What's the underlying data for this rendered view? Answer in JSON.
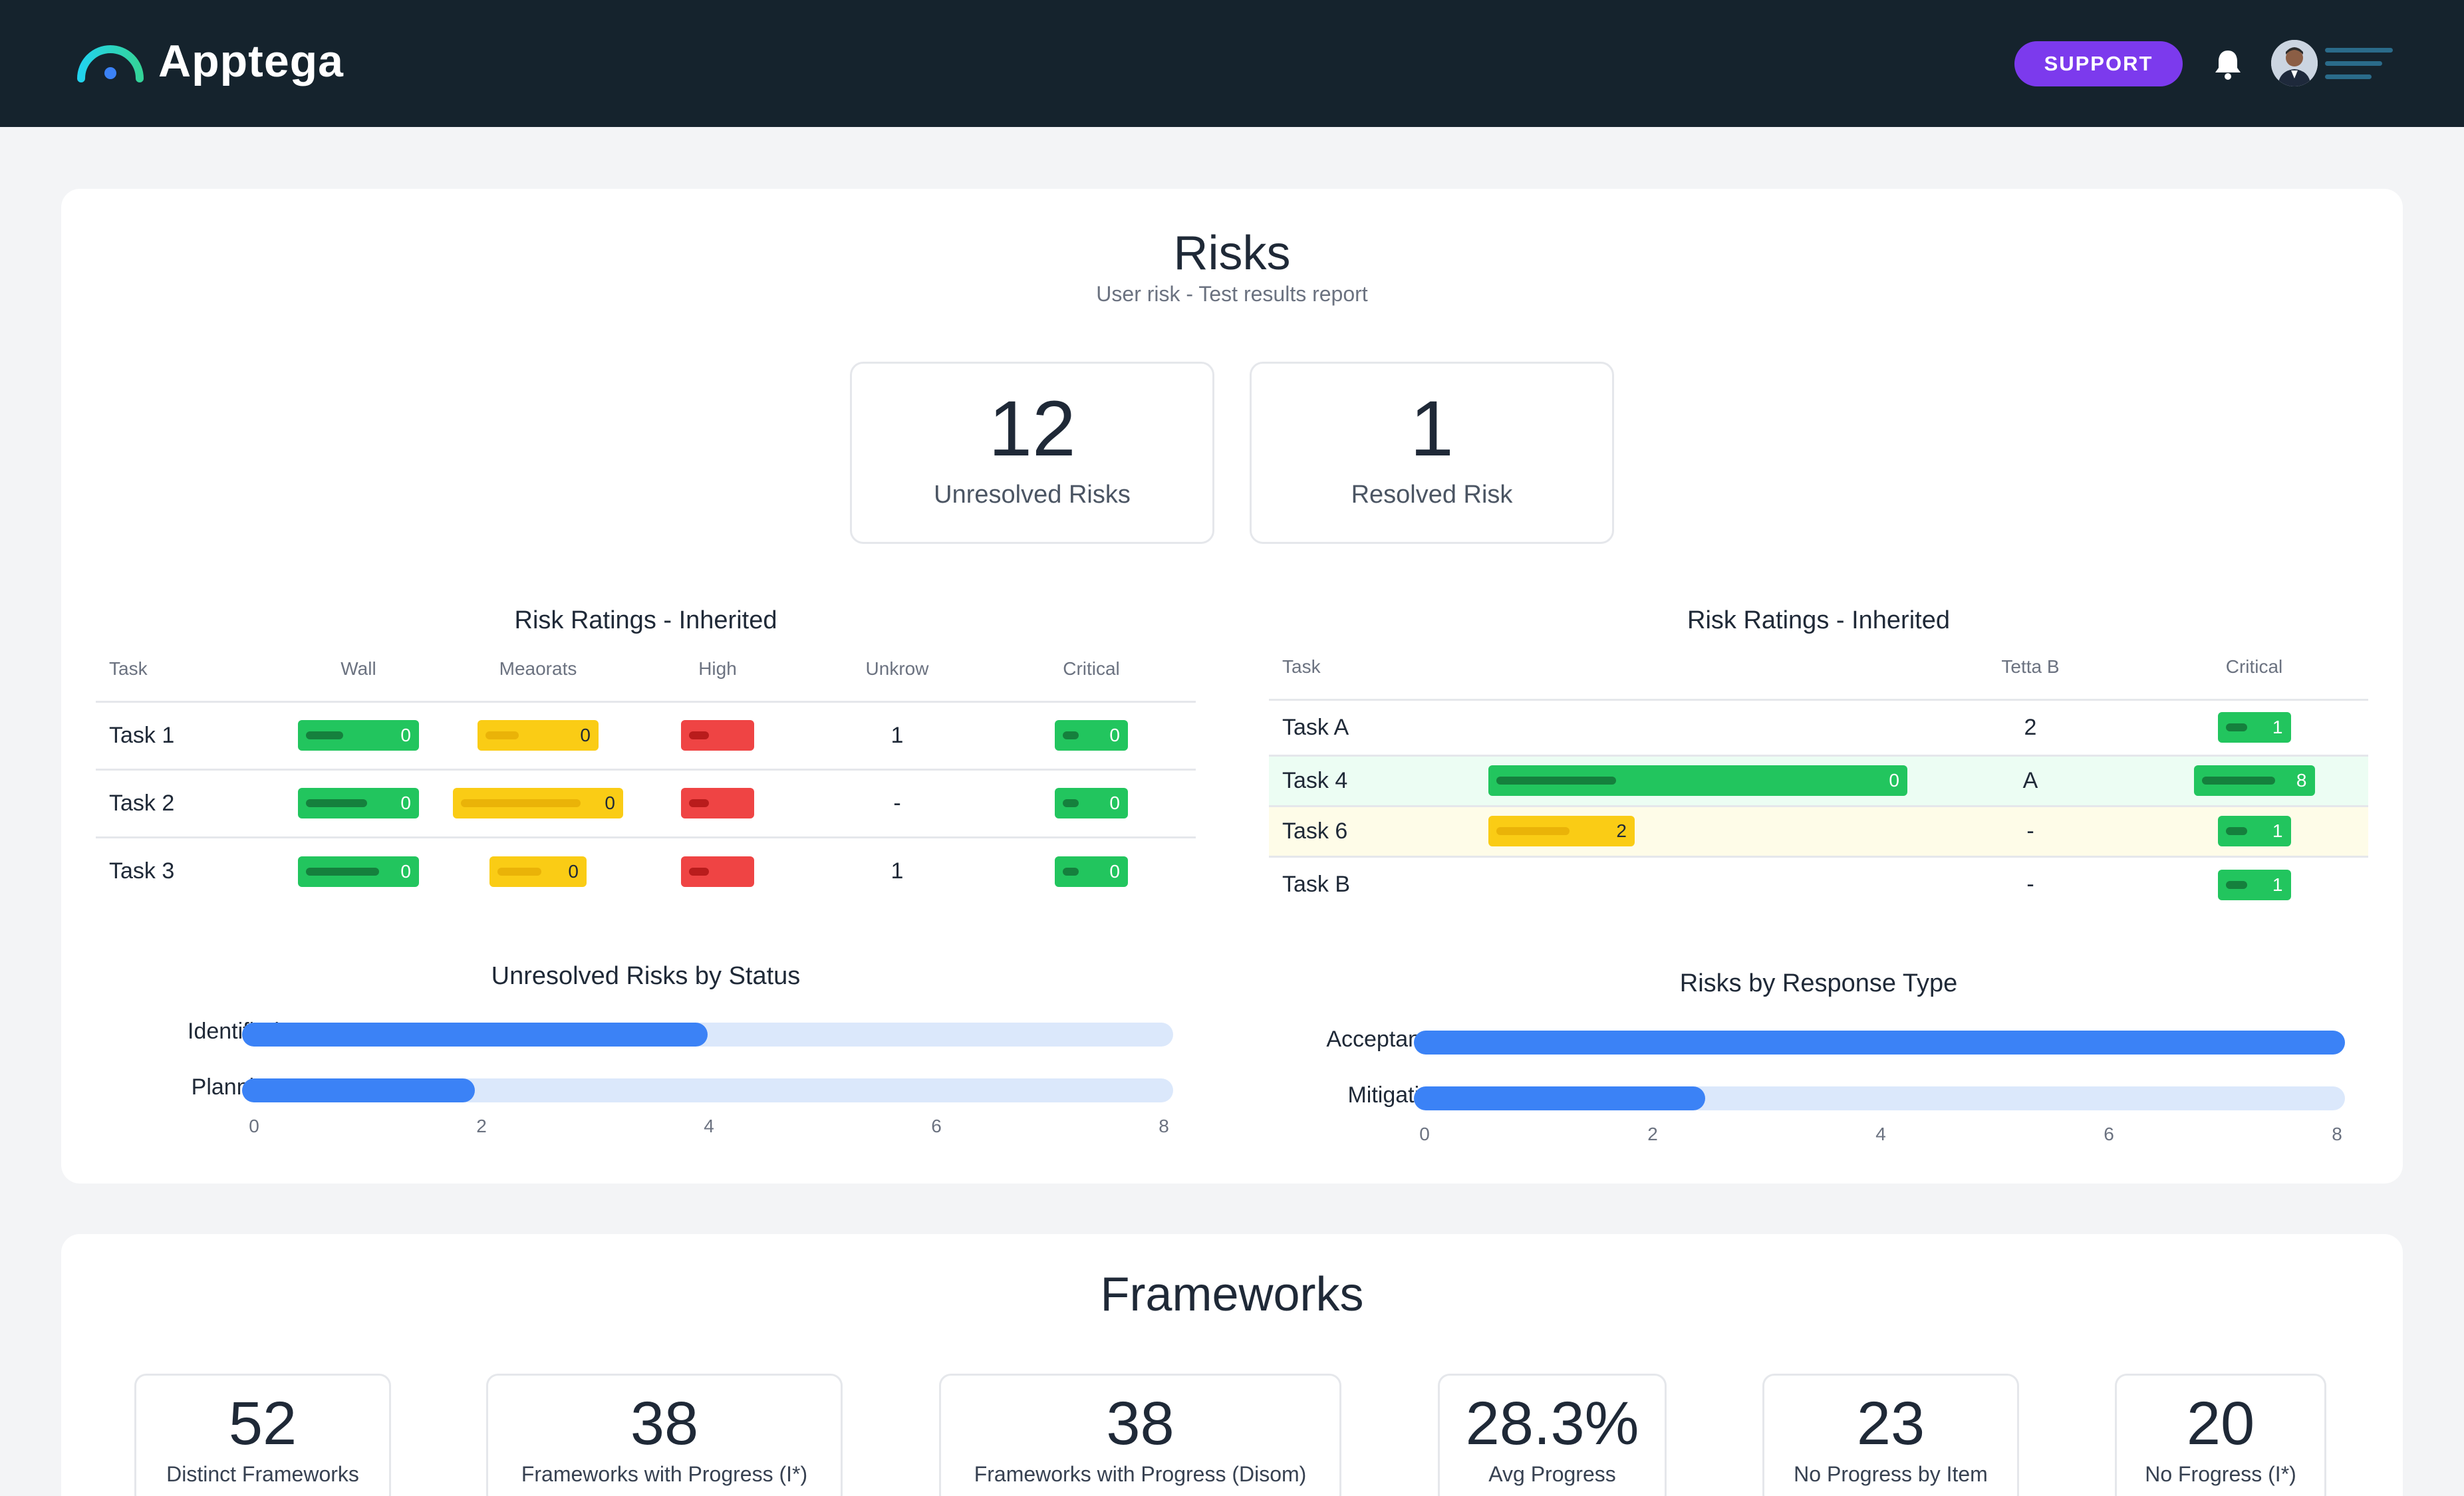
{
  "header": {
    "brand": "Apptega",
    "support_label": "SUPPORT",
    "icons": [
      "apptega-logo-icon",
      "bell-icon",
      "avatar",
      "menu-icon"
    ]
  },
  "risks": {
    "title": "Risks",
    "subtitle": "User risk - Test results report",
    "stats": [
      {
        "value": "12",
        "label": "Unresolved Risks"
      },
      {
        "value": "1",
        "label": "Resolved Risk"
      }
    ],
    "left_table": {
      "title": "Risk Ratings - Inherited",
      "columns": [
        "Task",
        "Wall",
        "Meaorats",
        "High",
        "Unkrow",
        "Critical"
      ],
      "rows": [
        {
          "task": "Task 1",
          "wall": "0",
          "meaorats": "0",
          "high": "",
          "unkrow": "1",
          "critical": "0"
        },
        {
          "task": "Task 2",
          "wall": "0",
          "meaorats": "0",
          "high": "",
          "unkrow": "-",
          "critical": "0"
        },
        {
          "task": "Task 3",
          "wall": "0",
          "meaorats": "0",
          "high": "",
          "unkrow": "1",
          "critical": "0"
        }
      ]
    },
    "right_table": {
      "title": "Risk Ratings - Inherited",
      "columns": [
        "Task",
        "",
        "Tetta B",
        "Critical"
      ],
      "rows": [
        {
          "task": "Task A",
          "bar": "",
          "tetta": "2",
          "critical": "1"
        },
        {
          "task": "Task 4",
          "bar": "0",
          "tetta": "A",
          "critical": "8"
        },
        {
          "task": "Task 6",
          "bar": "2",
          "tetta": "-",
          "critical": "1"
        },
        {
          "task": "Task B",
          "bar": "",
          "tetta": "-",
          "critical": "1"
        }
      ]
    },
    "status_chart": {
      "title": "Unresolved Risks by Status",
      "ticks": [
        "0",
        "2",
        "4",
        "6",
        "8"
      ],
      "max": 8,
      "bars": [
        {
          "label": "Identified",
          "value": 4
        },
        {
          "label": "Planning",
          "value": 2
        }
      ]
    },
    "response_chart": {
      "title": "Risks by Response Type",
      "ticks": [
        "0",
        "2",
        "4",
        "6",
        "8"
      ],
      "max": 8,
      "bars": [
        {
          "label": "Acceptance",
          "value": 8
        },
        {
          "label": "Mitigation",
          "value": 2.5
        }
      ]
    }
  },
  "frameworks": {
    "title": "Frameworks",
    "stats": [
      {
        "value": "52",
        "label": "Distinct Frameworks"
      },
      {
        "value": "38",
        "label": "Frameworks with Progress (I*)"
      },
      {
        "value": "38",
        "label": "Frameworks with Progress (Disom)"
      },
      {
        "value": "28.3%",
        "label": "Avg Progress"
      },
      {
        "value": "23",
        "label": "No Progress by Item"
      },
      {
        "value": "20",
        "label": "No Frogress (I*)"
      }
    ]
  },
  "colors": {
    "header_bg": "#15232d",
    "support": "#7c3aed",
    "green": "#22c55e",
    "yellow": "#facc15",
    "red": "#ef4444",
    "bar_blue": "#3b82f6",
    "bar_track": "#dbe8fb"
  }
}
